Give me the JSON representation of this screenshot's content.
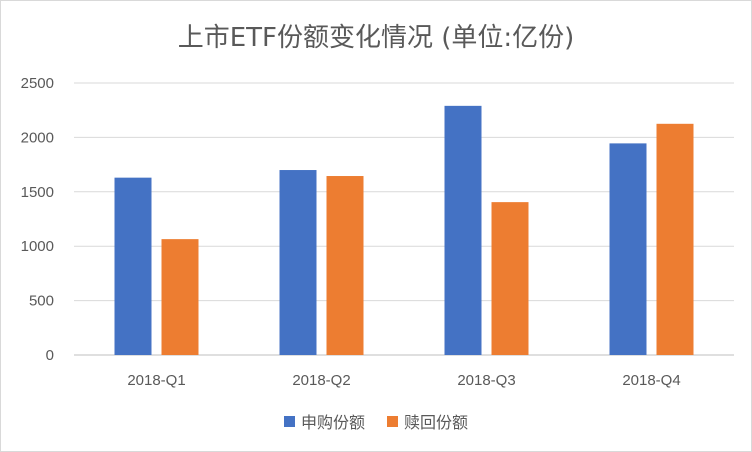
{
  "chart_data": {
    "type": "bar",
    "title": "上市ETF份额变化情况 (单位:亿份)",
    "categories": [
      "2018-Q1",
      "2018-Q2",
      "2018-Q3",
      "2018-Q4"
    ],
    "series": [
      {
        "name": "申购份额",
        "color": "#4472C4",
        "values": [
          1630,
          1700,
          2290,
          1945
        ]
      },
      {
        "name": "赎回份额",
        "color": "#ED7D31",
        "values": [
          1065,
          1645,
          1405,
          2125
        ]
      }
    ],
    "ylim": [
      0,
      2500
    ],
    "yticks": [
      0,
      500,
      1000,
      1500,
      2000,
      2500
    ],
    "grid": true,
    "legend_position": "bottom"
  }
}
